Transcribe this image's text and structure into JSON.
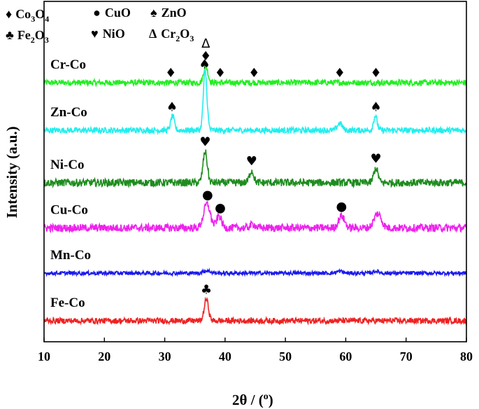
{
  "chart_data": {
    "type": "line",
    "xlabel": "2θ / (o)",
    "ylabel": "Intensity (a.u.)",
    "xlim": [
      10,
      80
    ],
    "xticks": [
      "10",
      "20",
      "30",
      "40",
      "50",
      "60",
      "70",
      "80"
    ],
    "yticks_shown": false,
    "grid": false,
    "legend": [
      {
        "symbol": "♦",
        "label": "Co3O4",
        "pos": "top-left"
      },
      {
        "symbol": "●",
        "label": "CuO",
        "pos": "top-left"
      },
      {
        "symbol": "♠",
        "label": "ZnO",
        "pos": "top-left"
      },
      {
        "symbol": "♣",
        "label": "Fe2O3",
        "pos": "top-left"
      },
      {
        "symbol": "♥",
        "label": "NiO",
        "pos": "top-left"
      },
      {
        "symbol": "Δ",
        "label": "Cr2O3",
        "pos": "top-left"
      }
    ],
    "series": [
      {
        "name": "Cr-Co",
        "color": "#22ee22",
        "baseline": 5.0,
        "noise": 0.06,
        "peaks": [
          [
            36.8,
            0.35,
            0.35
          ]
        ],
        "markers": [
          {
            "x": 31.0,
            "symbol": "♦"
          },
          {
            "x": 36.8,
            "symbol": "♦"
          },
          {
            "x": 36.8,
            "symbol": "Δ"
          },
          {
            "x": 39.2,
            "symbol": "♦"
          },
          {
            "x": 44.8,
            "symbol": "♦"
          },
          {
            "x": 59.0,
            "symbol": "♦"
          },
          {
            "x": 65.0,
            "symbol": "♦"
          }
        ]
      },
      {
        "name": "Zn-Co",
        "color": "#22eeee",
        "baseline": 4.0,
        "noise": 0.06,
        "peaks": [
          [
            31.3,
            0.3,
            0.3
          ],
          [
            36.7,
            1.25,
            0.3
          ],
          [
            59.0,
            0.15,
            0.4
          ],
          [
            64.9,
            0.3,
            0.3
          ]
        ],
        "markers": [
          {
            "x": 31.2,
            "symbol": "♠"
          },
          {
            "x": 36.6,
            "symbol": "♠"
          },
          {
            "x": 65.0,
            "symbol": "♠"
          }
        ]
      },
      {
        "name": "Ni-Co",
        "color": "#1e8c1e",
        "baseline": 2.9,
        "noise": 0.08,
        "peaks": [
          [
            36.7,
            0.65,
            0.35
          ],
          [
            44.4,
            0.25,
            0.35
          ],
          [
            65.0,
            0.3,
            0.35
          ]
        ],
        "markers": [
          {
            "x": 36.7,
            "symbol": "♥"
          },
          {
            "x": 44.4,
            "symbol": "♥"
          },
          {
            "x": 65.0,
            "symbol": "♥"
          }
        ]
      },
      {
        "name": "Cu-Co",
        "color": "#ee22ee",
        "baseline": 1.95,
        "noise": 0.08,
        "peaks": [
          [
            37.0,
            0.5,
            0.55
          ],
          [
            39.0,
            0.25,
            0.4
          ],
          [
            59.3,
            0.25,
            0.5
          ],
          [
            65.3,
            0.3,
            0.6
          ],
          [
            44.6,
            0.08,
            0.4
          ]
        ],
        "markers": [
          {
            "x": 37.1,
            "symbol": "●"
          },
          {
            "x": 39.2,
            "symbol": "●"
          },
          {
            "x": 59.3,
            "symbol": "●"
          }
        ]
      },
      {
        "name": "Mn-Co",
        "color": "#1a1aee",
        "baseline": 1.0,
        "noise": 0.04,
        "peaks": [
          [
            37.0,
            0.05,
            0.6
          ],
          [
            59.0,
            0.04,
            0.5
          ],
          [
            65.0,
            0.04,
            0.5
          ]
        ],
        "markers": []
      },
      {
        "name": "Fe-Co",
        "color": "#ee2222",
        "baseline": 0.0,
        "noise": 0.06,
        "peaks": [
          [
            36.9,
            0.45,
            0.35
          ]
        ],
        "markers": [
          {
            "x": 36.9,
            "symbol": "♣"
          }
        ]
      }
    ]
  }
}
